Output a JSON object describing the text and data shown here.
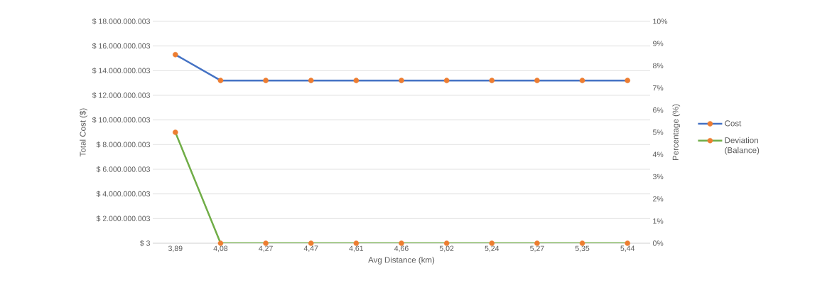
{
  "chart_data": {
    "type": "line",
    "xlabel": "Avg Distance (km)",
    "ylabel": "Total Cost ($)",
    "y2label": "Percentage (%)",
    "categories": [
      "3,89",
      "4,08",
      "4,27",
      "4,47",
      "4,61",
      "4,66",
      "5,02",
      "5,24",
      "5,27",
      "5,35",
      "5,44"
    ],
    "series": [
      {
        "name": "Cost",
        "color": "#4472c4",
        "colors": [
          "#ed7d31",
          "#ed7d31",
          "#ed7d31",
          "#ed7d31",
          "#ed7d31",
          "#ed7d31",
          "#ed7d31",
          "#ed7d31",
          "#ed7d31",
          "#ed7d31",
          "#ed7d31"
        ],
        "values": [
          15300000000,
          13200000000,
          13200000000,
          13200000000,
          13200000000,
          13200000000,
          13200000000,
          13200000000,
          13200000000,
          13200000000,
          13200000000
        ]
      },
      {
        "name": "Deviation (Balance)",
        "axis": "y2",
        "color": "#70ad47",
        "colors": [
          "#ed7d31",
          "#ed7d31",
          "#ed7d31",
          "#ed7d31",
          "#ed7d31",
          "#ed7d31",
          "#ed7d31",
          "#ed7d31",
          "#ed7d31",
          "#ed7d31",
          "#ed7d31"
        ],
        "values": [
          5,
          0,
          0,
          0,
          0,
          0,
          0,
          0,
          0,
          0,
          0
        ]
      }
    ],
    "ylim": [
      3,
      18000000003
    ],
    "yticks": [
      {
        "value": 3,
        "label": "$ 3"
      },
      {
        "value": 2000000003,
        "label": "$ 2.000.000.003"
      },
      {
        "value": 4000000003,
        "label": "$ 4.000.000.003"
      },
      {
        "value": 6000000003,
        "label": "$ 6.000.000.003"
      },
      {
        "value": 8000000003,
        "label": "$ 8.000.000.003"
      },
      {
        "value": 10000000003,
        "label": "$ 10.000.000.003"
      },
      {
        "value": 12000000003,
        "label": "$ 12.000.000.003"
      },
      {
        "value": 14000000003,
        "label": "$ 14.000.000.003"
      },
      {
        "value": 16000000003,
        "label": "$ 16.000.000.003"
      },
      {
        "value": 18000000003,
        "label": "$ 18.000.000.003"
      }
    ],
    "y2lim": [
      0,
      10
    ],
    "y2ticks": [
      {
        "value": 0,
        "label": "0%"
      },
      {
        "value": 1,
        "label": "1%"
      },
      {
        "value": 2,
        "label": "2%"
      },
      {
        "value": 3,
        "label": "3%"
      },
      {
        "value": 4,
        "label": "4%"
      },
      {
        "value": 5,
        "label": "5%"
      },
      {
        "value": 6,
        "label": "6%"
      },
      {
        "value": 7,
        "label": "7%"
      },
      {
        "value": 8,
        "label": "8%"
      },
      {
        "value": 9,
        "label": "9%"
      },
      {
        "value": 10,
        "label": "10%"
      }
    ],
    "grid": "y",
    "legend": "right",
    "marker": "circle",
    "line_style": "solid"
  }
}
